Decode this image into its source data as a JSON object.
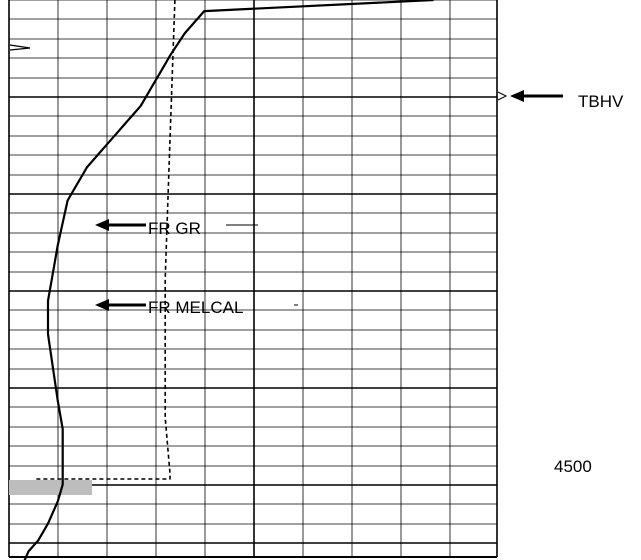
{
  "labels": {
    "tbhv": "TBHV",
    "fr_gr": "FR GR",
    "fr_melcal": "FR MELCAL",
    "depth": "4500"
  },
  "colors": {
    "ink": "#000000",
    "grid": "#000000",
    "shade": "#bdbdbd",
    "background": "#ffffff"
  },
  "chart_data": {
    "type": "line",
    "depth_axis": {
      "direction": "down",
      "major_every": 5,
      "minor_per_major": 5,
      "labeled_depth": "4500"
    },
    "grid": true,
    "series": [
      {
        "curve": "gamma-ray",
        "style": "solid",
        "points": [
          [
            0.87,
            0
          ],
          [
            0.4,
            2
          ],
          [
            0.36,
            6
          ],
          [
            0.33,
            10
          ],
          [
            0.31,
            13
          ],
          [
            0.29,
            16
          ],
          [
            0.27,
            19
          ],
          [
            0.25,
            21
          ],
          [
            0.24,
            22
          ],
          [
            0.22,
            24
          ],
          [
            0.2,
            26
          ],
          [
            0.18,
            28
          ],
          [
            0.16,
            30
          ],
          [
            0.14,
            33
          ],
          [
            0.12,
            36
          ],
          [
            0.11,
            40
          ],
          [
            0.1,
            44
          ],
          [
            0.09,
            49
          ],
          [
            0.08,
            54
          ],
          [
            0.08,
            60
          ],
          [
            0.09,
            66
          ],
          [
            0.1,
            72
          ],
          [
            0.11,
            77
          ],
          [
            0.11,
            80
          ],
          [
            0.11,
            84
          ],
          [
            0.11,
            87
          ],
          [
            0.1,
            90
          ],
          [
            0.08,
            94
          ],
          [
            0.06,
            97
          ],
          [
            0.04,
            99
          ],
          [
            0.03,
            101
          ]
        ]
      },
      {
        "curve": "caliper",
        "style": "dashed",
        "points": [
          [
            0.34,
            0
          ],
          [
            0.33,
            25
          ],
          [
            0.32,
            50
          ],
          [
            0.32,
            75
          ],
          [
            0.33,
            85
          ],
          [
            0.33,
            86
          ],
          [
            0.05,
            86
          ]
        ]
      }
    ],
    "annotations": [
      {
        "text": "TBHV",
        "depth_fraction": 0.17,
        "side": "right"
      },
      {
        "text": "FR GR",
        "depth_fraction": 0.4,
        "side": "track"
      },
      {
        "text": "FR MELCAL",
        "depth_fraction": 0.54,
        "side": "track"
      },
      {
        "text": "4500",
        "depth_fraction": 0.83,
        "side": "depth-column"
      }
    ]
  }
}
